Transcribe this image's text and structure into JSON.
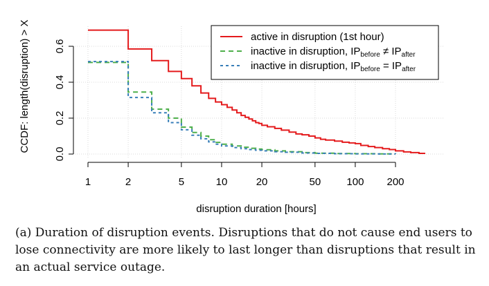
{
  "chart_data": {
    "type": "line",
    "subtype": "step",
    "xscale": "log",
    "xlabel": "disruption duration [hours]",
    "ylabel": "CCDF: length(disruption) > X",
    "xlim": [
      1,
      330
    ],
    "ylim": [
      0,
      0.7
    ],
    "xticks": [
      1,
      2,
      5,
      10,
      20,
      50,
      100,
      200
    ],
    "xtick_labels": [
      "1",
      "2",
      "5",
      "10",
      "20",
      "50",
      "100",
      "200"
    ],
    "yticks": [
      0.0,
      0.2,
      0.4,
      0.6
    ],
    "ytick_labels": [
      "0.0",
      "0.2",
      "0.4",
      "0.6"
    ],
    "grid": true,
    "legend_position": "top-right",
    "series": [
      {
        "name": "active in disruption (1st hour)",
        "legend_parts": [
          "active in disruption (1st hour)",
          "",
          "",
          "",
          ""
        ],
        "color": "#e41a1c",
        "dash": "solid",
        "points": [
          [
            1,
            0.69
          ],
          [
            2,
            0.585
          ],
          [
            3,
            0.52
          ],
          [
            4,
            0.46
          ],
          [
            5,
            0.42
          ],
          [
            6,
            0.38
          ],
          [
            7,
            0.34
          ],
          [
            8,
            0.31
          ],
          [
            9,
            0.29
          ],
          [
            10,
            0.275
          ],
          [
            11,
            0.26
          ],
          [
            12,
            0.245
          ],
          [
            13,
            0.23
          ],
          [
            14,
            0.215
          ],
          [
            15,
            0.205
          ],
          [
            16,
            0.195
          ],
          [
            17,
            0.185
          ],
          [
            18,
            0.175
          ],
          [
            19,
            0.17
          ],
          [
            20,
            0.16
          ],
          [
            22,
            0.152
          ],
          [
            25,
            0.143
          ],
          [
            28,
            0.133
          ],
          [
            32,
            0.122
          ],
          [
            36,
            0.112
          ],
          [
            40,
            0.107
          ],
          [
            45,
            0.1
          ],
          [
            50,
            0.09
          ],
          [
            55,
            0.082
          ],
          [
            60,
            0.078
          ],
          [
            70,
            0.072
          ],
          [
            80,
            0.066
          ],
          [
            90,
            0.062
          ],
          [
            100,
            0.058
          ],
          [
            110,
            0.048
          ],
          [
            125,
            0.042
          ],
          [
            140,
            0.036
          ],
          [
            160,
            0.03
          ],
          [
            180,
            0.025
          ],
          [
            200,
            0.018
          ],
          [
            230,
            0.012
          ],
          [
            260,
            0.008
          ],
          [
            300,
            0.004
          ],
          [
            330,
            0.0
          ]
        ]
      },
      {
        "name": "inactive in disruption, IP before ≠ IP after",
        "legend_parts": [
          "inactive in disruption, IP",
          "before",
          " ≠ IP",
          "after",
          ""
        ],
        "color": "#4daf4a",
        "dash": "7,5",
        "points": [
          [
            1,
            0.51
          ],
          [
            2,
            0.345
          ],
          [
            3,
            0.25
          ],
          [
            4,
            0.2
          ],
          [
            5,
            0.15
          ],
          [
            6,
            0.12
          ],
          [
            7,
            0.1
          ],
          [
            8,
            0.08
          ],
          [
            9,
            0.065
          ],
          [
            10,
            0.055
          ],
          [
            12,
            0.045
          ],
          [
            14,
            0.038
          ],
          [
            16,
            0.032
          ],
          [
            18,
            0.028
          ],
          [
            20,
            0.024
          ],
          [
            25,
            0.018
          ],
          [
            30,
            0.013
          ],
          [
            40,
            0.008
          ],
          [
            50,
            0.005
          ],
          [
            70,
            0.003
          ],
          [
            100,
            0.002
          ],
          [
            150,
            0.001
          ],
          [
            200,
            0.0
          ]
        ]
      },
      {
        "name": "inactive in disruption, IP before = IP after",
        "legend_parts": [
          "inactive in disruption, IP",
          "before",
          " = IP",
          "after",
          ""
        ],
        "color": "#377eb8",
        "dash": "4,4",
        "points": [
          [
            1,
            0.515
          ],
          [
            2,
            0.315
          ],
          [
            3,
            0.23
          ],
          [
            4,
            0.175
          ],
          [
            5,
            0.135
          ],
          [
            6,
            0.105
          ],
          [
            7,
            0.085
          ],
          [
            8,
            0.068
          ],
          [
            9,
            0.055
          ],
          [
            10,
            0.045
          ],
          [
            12,
            0.036
          ],
          [
            14,
            0.03
          ],
          [
            16,
            0.025
          ],
          [
            18,
            0.021
          ],
          [
            20,
            0.018
          ],
          [
            25,
            0.013
          ],
          [
            30,
            0.01
          ],
          [
            40,
            0.006
          ],
          [
            50,
            0.004
          ],
          [
            70,
            0.002
          ],
          [
            100,
            0.001
          ],
          [
            150,
            0.0005
          ],
          [
            200,
            0.0
          ]
        ]
      }
    ]
  },
  "caption": "(a) Duration of disruption events. Disruptions that do not cause end users to lose connectivity are more likely to last longer than disruptions that result in an actual service outage."
}
